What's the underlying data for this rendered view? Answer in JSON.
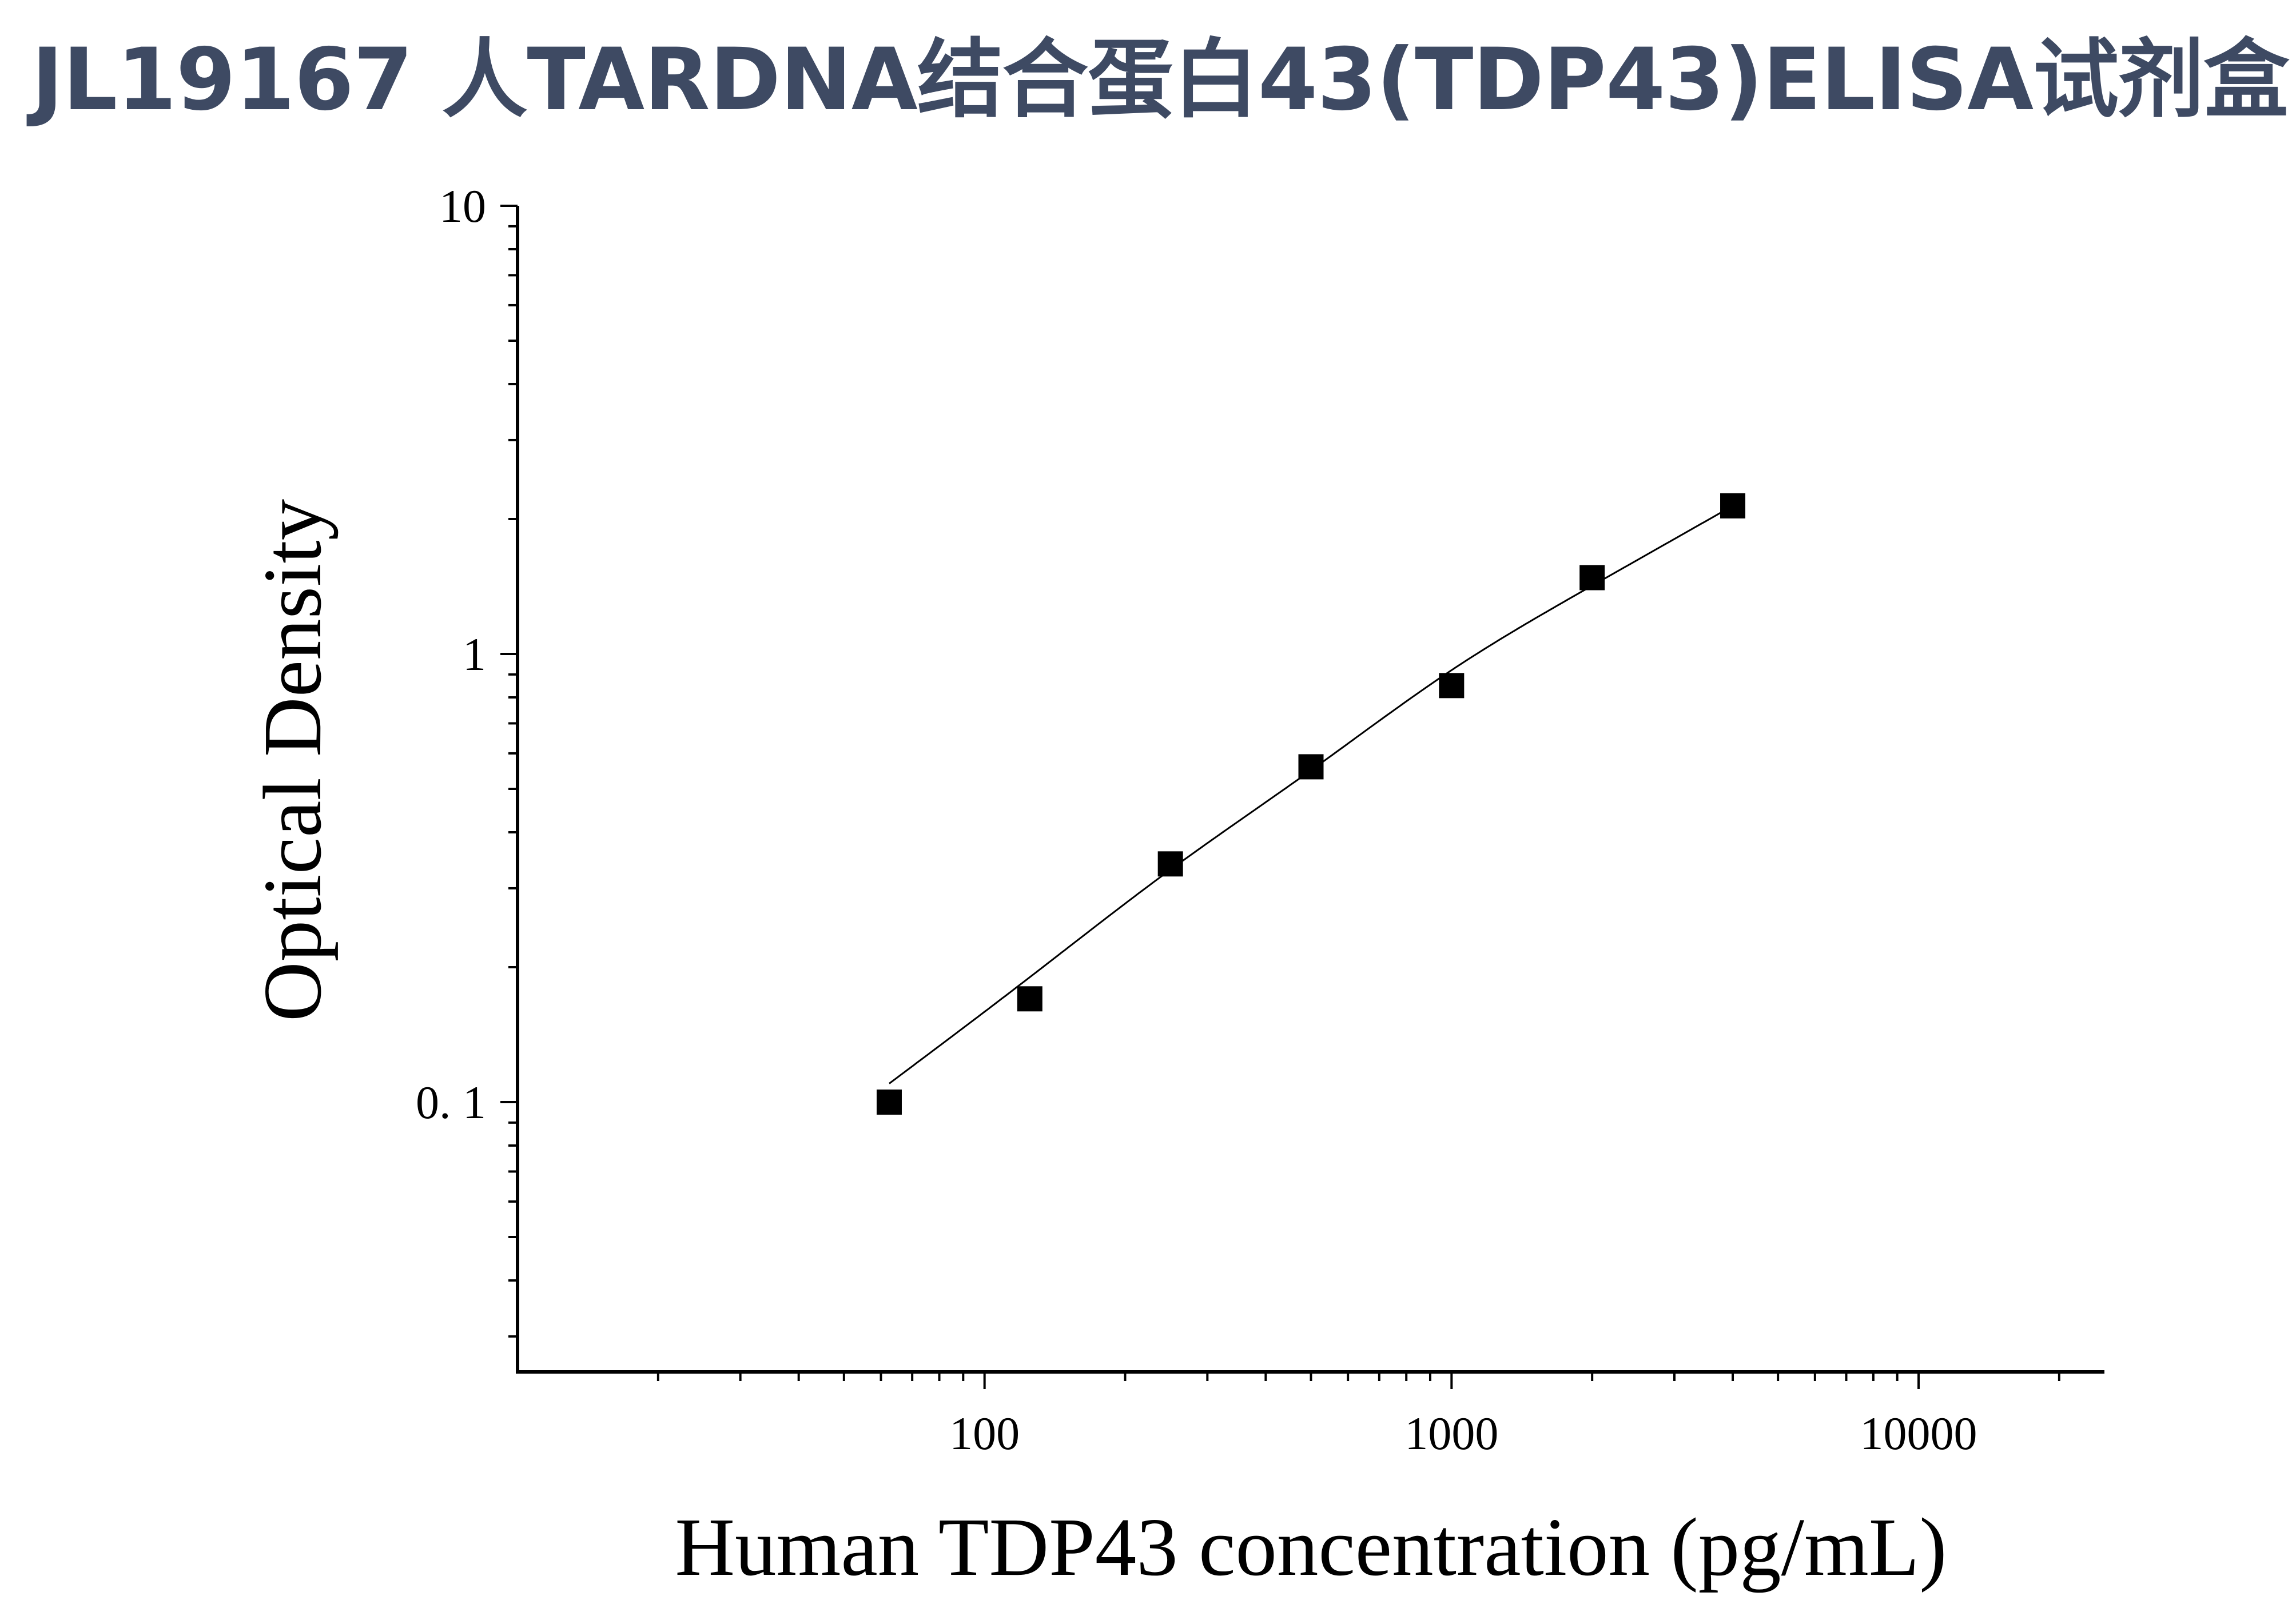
{
  "page": {
    "title": "JL19167 人TARDNA结合蛋白43(TDP43)ELISA试剂盒"
  },
  "chart_data": {
    "type": "scatter",
    "xlabel": "Human TDP43 concentration (pg/mL)",
    "ylabel": "Optical Density",
    "xscale": "log",
    "yscale": "log",
    "xlim": [
      10,
      25000
    ],
    "ylim": [
      0.025,
      10
    ],
    "x_ticks": [
      {
        "value": 100,
        "label": "100"
      },
      {
        "value": 1000,
        "label": "1000"
      },
      {
        "value": 10000,
        "label": "10000"
      }
    ],
    "y_ticks": [
      {
        "value": 0.1,
        "label": "0. 1"
      },
      {
        "value": 1,
        "label": "1"
      },
      {
        "value": 10,
        "label": "10"
      }
    ],
    "grid": false,
    "marker": "square",
    "marker_color": "#000000",
    "line_color": "#000000",
    "series": [
      {
        "x": [
          62.5,
          125,
          250,
          500,
          1000,
          2000,
          4000
        ],
        "y": [
          0.1,
          0.17,
          0.34,
          0.56,
          0.85,
          1.48,
          2.14
        ]
      }
    ],
    "fit_curve": {
      "x": [
        62.5,
        125,
        250,
        500,
        1000,
        2000,
        4000
      ],
      "y": [
        0.11,
        0.19,
        0.33,
        0.55,
        0.92,
        1.42,
        2.14
      ]
    }
  }
}
